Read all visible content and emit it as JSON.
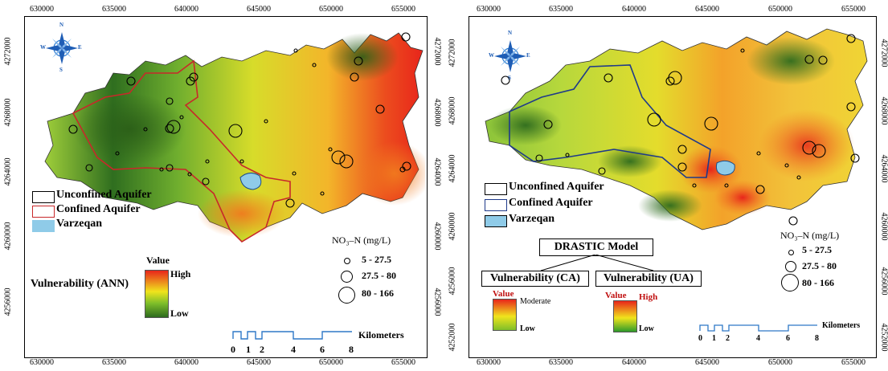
{
  "axes": {
    "x_ticks": [
      "630000",
      "635000",
      "640000",
      "645000",
      "650000",
      "655000"
    ],
    "left_y_ticks": [
      "4272000",
      "4268000",
      "4264000",
      "4260000",
      "4256000"
    ],
    "right_y_ticks": [
      "4272000",
      "4268000",
      "4264000",
      "4260000",
      "4256000",
      "4252000"
    ]
  },
  "compass": {
    "n": "N",
    "s": "S",
    "e": "E",
    "w": "W"
  },
  "left": {
    "legend": {
      "unconfined": "Unconfined Aquifer",
      "confined": "Confined Aquifer",
      "city": "Varzeqan"
    },
    "nitrate_title": "NO₃–N  (mg/L)",
    "nitrate_classes": [
      "5 - 27.5",
      "27.5 - 80",
      "80 - 166"
    ],
    "ramp_title": "Value",
    "ramp_high": "High",
    "ramp_low": "Low",
    "vuln_label": "Vulnerability (ANN)",
    "scale_numbers": [
      "0",
      "1",
      "2",
      "4",
      "6",
      "8"
    ],
    "scale_unit": "Kilometers"
  },
  "right": {
    "legend": {
      "unconfined": "Unconfined Aquifer",
      "confined": "Confined Aquifer",
      "city": "Varzeqan"
    },
    "nitrate_title": "NO₃–N  (mg/L)",
    "nitrate_classes": [
      "5 - 27.5",
      "27.5 - 80",
      "80 - 166"
    ],
    "model_title": "DRASTIC Model",
    "ca_label": "Vulnerability (CA)",
    "ua_label": "Vulnerability (UA)",
    "ca_ramp": {
      "title": "Value",
      "high": "Moderate",
      "low": "Low"
    },
    "ua_ramp": {
      "title": "Value",
      "high": "High",
      "low": "Low"
    },
    "scale_numbers": [
      "0",
      "1",
      "2",
      "4",
      "6",
      "8"
    ],
    "scale_unit": "Kilometers"
  },
  "colors": {
    "high": "#e8251b",
    "mid": "#f0e41c",
    "low": "#2d6b1e",
    "confined_left": "#c8282a",
    "confined_right": "#1f3a8a",
    "city": "#8fcbe8",
    "scale": "#2e78c7"
  }
}
